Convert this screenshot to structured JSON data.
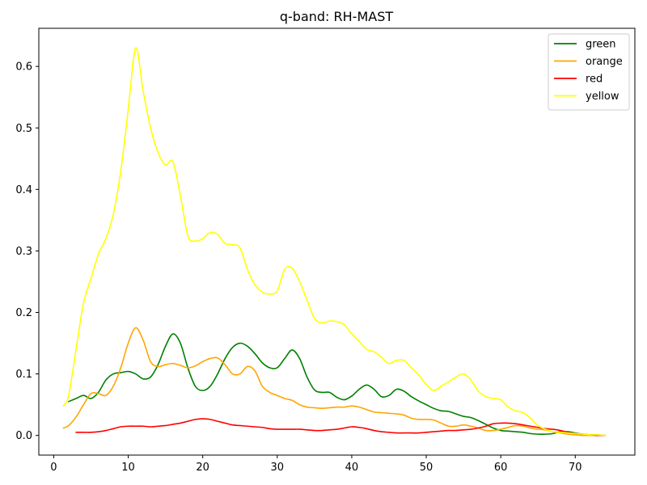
{
  "chart_data": {
    "type": "line",
    "title": "q-band: RH-MAST",
    "xlabel": "",
    "ylabel": "",
    "xlim": [
      -2,
      78
    ],
    "ylim": [
      -0.032,
      0.662
    ],
    "xticks": [
      0,
      10,
      20,
      30,
      40,
      50,
      60,
      70
    ],
    "yticks": [
      0.0,
      0.1,
      0.2,
      0.3,
      0.4,
      0.5,
      0.6
    ],
    "grid": false,
    "legend_position": "top-right",
    "series": [
      {
        "name": "green",
        "color": "#008000",
        "points": [
          [
            2,
            0.055
          ],
          [
            3,
            0.06
          ],
          [
            4,
            0.065
          ],
          [
            5,
            0.06
          ],
          [
            6,
            0.07
          ],
          [
            7,
            0.09
          ],
          [
            8,
            0.1
          ],
          [
            9,
            0.102
          ],
          [
            10,
            0.104
          ],
          [
            11,
            0.1
          ],
          [
            12,
            0.092
          ],
          [
            13,
            0.095
          ],
          [
            14,
            0.115
          ],
          [
            15,
            0.145
          ],
          [
            16,
            0.165
          ],
          [
            17,
            0.15
          ],
          [
            18,
            0.11
          ],
          [
            19,
            0.08
          ],
          [
            20,
            0.073
          ],
          [
            21,
            0.08
          ],
          [
            22,
            0.1
          ],
          [
            23,
            0.125
          ],
          [
            24,
            0.143
          ],
          [
            25,
            0.15
          ],
          [
            26,
            0.145
          ],
          [
            27,
            0.133
          ],
          [
            28,
            0.118
          ],
          [
            29,
            0.11
          ],
          [
            30,
            0.11
          ],
          [
            31,
            0.125
          ],
          [
            32,
            0.139
          ],
          [
            33,
            0.125
          ],
          [
            34,
            0.095
          ],
          [
            35,
            0.074
          ],
          [
            36,
            0.07
          ],
          [
            37,
            0.07
          ],
          [
            38,
            0.062
          ],
          [
            39,
            0.058
          ],
          [
            40,
            0.064
          ],
          [
            41,
            0.075
          ],
          [
            42,
            0.082
          ],
          [
            43,
            0.075
          ],
          [
            44,
            0.063
          ],
          [
            45,
            0.065
          ],
          [
            46,
            0.075
          ],
          [
            47,
            0.072
          ],
          [
            48,
            0.063
          ],
          [
            49,
            0.056
          ],
          [
            50,
            0.05
          ],
          [
            51,
            0.044
          ],
          [
            52,
            0.04
          ],
          [
            53,
            0.039
          ],
          [
            54,
            0.035
          ],
          [
            55,
            0.031
          ],
          [
            56,
            0.029
          ],
          [
            57,
            0.024
          ],
          [
            58,
            0.018
          ],
          [
            59,
            0.012
          ],
          [
            60,
            0.008
          ],
          [
            61,
            0.007
          ],
          [
            62,
            0.006
          ],
          [
            63,
            0.005
          ],
          [
            64,
            0.003
          ],
          [
            65,
            0.002
          ],
          [
            66,
            0.002
          ],
          [
            67,
            0.003
          ],
          [
            68,
            0.006
          ],
          [
            69,
            0.006
          ],
          [
            70,
            0.004
          ],
          [
            71,
            0.002
          ],
          [
            72,
            0.001
          ],
          [
            73,
            0.001
          ],
          [
            74,
            0.0
          ]
        ]
      },
      {
        "name": "orange",
        "color": "#ffa500",
        "points": [
          [
            1.3,
            0.012
          ],
          [
            2,
            0.016
          ],
          [
            3,
            0.03
          ],
          [
            4,
            0.05
          ],
          [
            5,
            0.068
          ],
          [
            6,
            0.068
          ],
          [
            7,
            0.065
          ],
          [
            8,
            0.08
          ],
          [
            9,
            0.11
          ],
          [
            10,
            0.15
          ],
          [
            11,
            0.175
          ],
          [
            12,
            0.155
          ],
          [
            13,
            0.12
          ],
          [
            14,
            0.112
          ],
          [
            15,
            0.115
          ],
          [
            16,
            0.117
          ],
          [
            17,
            0.114
          ],
          [
            18,
            0.11
          ],
          [
            19,
            0.113
          ],
          [
            20,
            0.12
          ],
          [
            21,
            0.125
          ],
          [
            22,
            0.126
          ],
          [
            23,
            0.115
          ],
          [
            24,
            0.1
          ],
          [
            25,
            0.1
          ],
          [
            26,
            0.112
          ],
          [
            27,
            0.105
          ],
          [
            28,
            0.08
          ],
          [
            29,
            0.07
          ],
          [
            30,
            0.065
          ],
          [
            31,
            0.06
          ],
          [
            32,
            0.057
          ],
          [
            33,
            0.05
          ],
          [
            34,
            0.046
          ],
          [
            35,
            0.045
          ],
          [
            36,
            0.044
          ],
          [
            37,
            0.045
          ],
          [
            38,
            0.046
          ],
          [
            39,
            0.046
          ],
          [
            40,
            0.048
          ],
          [
            41,
            0.046
          ],
          [
            42,
            0.042
          ],
          [
            43,
            0.038
          ],
          [
            44,
            0.037
          ],
          [
            45,
            0.036
          ],
          [
            46,
            0.035
          ],
          [
            47,
            0.033
          ],
          [
            48,
            0.028
          ],
          [
            49,
            0.026
          ],
          [
            50,
            0.026
          ],
          [
            51,
            0.025
          ],
          [
            52,
            0.02
          ],
          [
            53,
            0.015
          ],
          [
            54,
            0.015
          ],
          [
            55,
            0.017
          ],
          [
            56,
            0.015
          ],
          [
            57,
            0.012
          ],
          [
            58,
            0.008
          ],
          [
            59,
            0.008
          ],
          [
            60,
            0.01
          ],
          [
            61,
            0.013
          ],
          [
            62,
            0.016
          ],
          [
            63,
            0.015
          ],
          [
            64,
            0.012
          ],
          [
            65,
            0.01
          ],
          [
            66,
            0.009
          ],
          [
            67,
            0.006
          ],
          [
            68,
            0.004
          ],
          [
            69,
            0.002
          ],
          [
            70,
            0.001
          ],
          [
            71,
            0.0
          ],
          [
            72,
            0.0
          ],
          [
            73,
            0.0
          ],
          [
            74,
            0.0
          ]
        ]
      },
      {
        "name": "red",
        "color": "#ff0000",
        "points": [
          [
            3,
            0.005
          ],
          [
            4,
            0.005
          ],
          [
            5,
            0.005
          ],
          [
            6,
            0.006
          ],
          [
            7,
            0.008
          ],
          [
            8,
            0.011
          ],
          [
            9,
            0.014
          ],
          [
            10,
            0.015
          ],
          [
            11,
            0.015
          ],
          [
            12,
            0.015
          ],
          [
            13,
            0.014
          ],
          [
            14,
            0.015
          ],
          [
            15,
            0.016
          ],
          [
            16,
            0.018
          ],
          [
            17,
            0.02
          ],
          [
            18,
            0.023
          ],
          [
            19,
            0.026
          ],
          [
            20,
            0.027
          ],
          [
            21,
            0.026
          ],
          [
            22,
            0.023
          ],
          [
            23,
            0.02
          ],
          [
            24,
            0.017
          ],
          [
            25,
            0.016
          ],
          [
            26,
            0.015
          ],
          [
            27,
            0.014
          ],
          [
            28,
            0.013
          ],
          [
            29,
            0.011
          ],
          [
            30,
            0.01
          ],
          [
            31,
            0.01
          ],
          [
            32,
            0.01
          ],
          [
            33,
            0.01
          ],
          [
            34,
            0.009
          ],
          [
            35,
            0.008
          ],
          [
            36,
            0.008
          ],
          [
            37,
            0.009
          ],
          [
            38,
            0.01
          ],
          [
            39,
            0.012
          ],
          [
            40,
            0.014
          ],
          [
            41,
            0.013
          ],
          [
            42,
            0.011
          ],
          [
            43,
            0.008
          ],
          [
            44,
            0.006
          ],
          [
            45,
            0.005
          ],
          [
            46,
            0.004
          ],
          [
            47,
            0.004
          ],
          [
            48,
            0.004
          ],
          [
            49,
            0.004
          ],
          [
            50,
            0.005
          ],
          [
            51,
            0.006
          ],
          [
            52,
            0.007
          ],
          [
            53,
            0.008
          ],
          [
            54,
            0.008
          ],
          [
            55,
            0.009
          ],
          [
            56,
            0.01
          ],
          [
            57,
            0.012
          ],
          [
            58,
            0.015
          ],
          [
            59,
            0.019
          ],
          [
            60,
            0.02
          ],
          [
            61,
            0.02
          ],
          [
            62,
            0.019
          ],
          [
            63,
            0.017
          ],
          [
            64,
            0.015
          ],
          [
            65,
            0.013
          ],
          [
            66,
            0.011
          ],
          [
            67,
            0.01
          ],
          [
            68,
            0.008
          ],
          [
            69,
            0.005
          ],
          [
            70,
            0.003
          ],
          [
            71,
            0.002
          ],
          [
            72,
            0.001
          ],
          [
            73,
            0.0
          ],
          [
            74,
            0.0
          ]
        ]
      },
      {
        "name": "yellow",
        "color": "#ffff00",
        "points": [
          [
            1.3,
            0.048
          ],
          [
            2,
            0.065
          ],
          [
            3,
            0.14
          ],
          [
            4,
            0.215
          ],
          [
            5,
            0.255
          ],
          [
            6,
            0.295
          ],
          [
            7,
            0.32
          ],
          [
            8,
            0.36
          ],
          [
            9,
            0.43
          ],
          [
            10,
            0.53
          ],
          [
            11,
            0.63
          ],
          [
            12,
            0.56
          ],
          [
            13,
            0.5
          ],
          [
            14,
            0.46
          ],
          [
            15,
            0.44
          ],
          [
            16,
            0.445
          ],
          [
            17,
            0.39
          ],
          [
            18,
            0.325
          ],
          [
            19,
            0.316
          ],
          [
            20,
            0.32
          ],
          [
            21,
            0.33
          ],
          [
            22,
            0.327
          ],
          [
            23,
            0.312
          ],
          [
            24,
            0.31
          ],
          [
            25,
            0.305
          ],
          [
            26,
            0.27
          ],
          [
            27,
            0.245
          ],
          [
            28,
            0.233
          ],
          [
            29,
            0.23
          ],
          [
            30,
            0.235
          ],
          [
            31,
            0.27
          ],
          [
            32,
            0.272
          ],
          [
            33,
            0.25
          ],
          [
            34,
            0.22
          ],
          [
            35,
            0.19
          ],
          [
            36,
            0.183
          ],
          [
            37,
            0.186
          ],
          [
            38,
            0.185
          ],
          [
            39,
            0.18
          ],
          [
            40,
            0.165
          ],
          [
            41,
            0.153
          ],
          [
            42,
            0.14
          ],
          [
            43,
            0.136
          ],
          [
            44,
            0.127
          ],
          [
            45,
            0.117
          ],
          [
            46,
            0.122
          ],
          [
            47,
            0.122
          ],
          [
            48,
            0.11
          ],
          [
            49,
            0.098
          ],
          [
            50,
            0.083
          ],
          [
            51,
            0.073
          ],
          [
            52,
            0.08
          ],
          [
            53,
            0.087
          ],
          [
            54,
            0.095
          ],
          [
            55,
            0.1
          ],
          [
            56,
            0.09
          ],
          [
            57,
            0.072
          ],
          [
            58,
            0.063
          ],
          [
            59,
            0.06
          ],
          [
            60,
            0.058
          ],
          [
            61,
            0.046
          ],
          [
            62,
            0.04
          ],
          [
            63,
            0.037
          ],
          [
            64,
            0.028
          ],
          [
            65,
            0.016
          ],
          [
            66,
            0.01
          ],
          [
            67,
            0.006
          ],
          [
            68,
            0.005
          ],
          [
            69,
            0.004
          ],
          [
            70,
            0.003
          ],
          [
            71,
            0.002
          ],
          [
            72,
            0.001
          ],
          [
            73,
            0.001
          ],
          [
            74,
            0.0
          ]
        ]
      }
    ]
  }
}
